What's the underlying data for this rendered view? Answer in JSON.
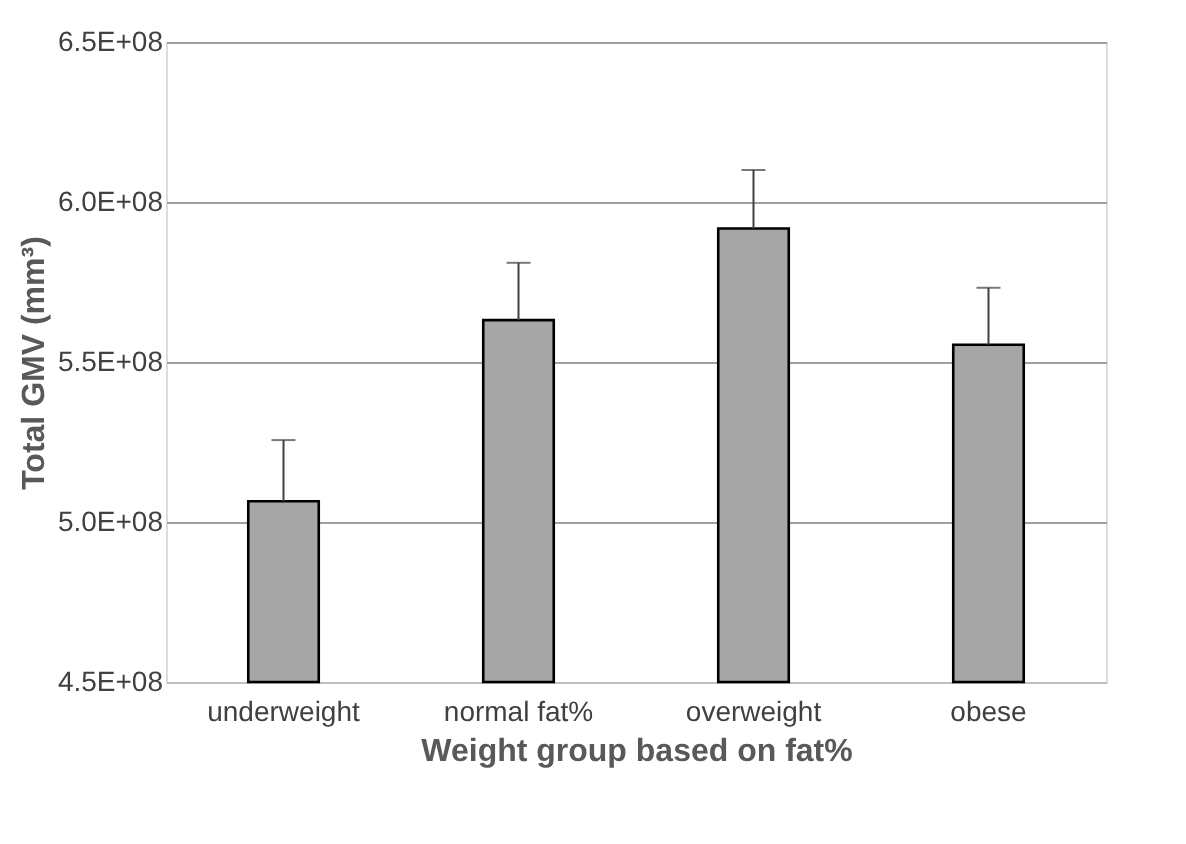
{
  "chart_data": {
    "type": "bar",
    "xlabel": "Weight group based on fat%",
    "ylabel": "Total GMV (mm³)",
    "categories": [
      "underweight",
      "normal fat%",
      "overweight",
      "obese"
    ],
    "series": [
      {
        "color": "#a6a6a6",
        "values": [
          506500000,
          563100000,
          591700000,
          555400000
        ],
        "errors": [
          [
            506500000,
            525600000
          ],
          [
            563100000,
            581000000
          ],
          [
            591700000,
            610000000
          ],
          [
            555400000,
            573200000
          ]
        ]
      }
    ],
    "ylim": [
      450000000,
      650000000
    ],
    "yticks": [
      {
        "value": 450000000,
        "label": "4.5E+08"
      },
      {
        "value": 500000000,
        "label": "5.0E+08"
      },
      {
        "value": 550000000,
        "label": "5.5E+08"
      },
      {
        "value": 600000000,
        "label": "6.0E+08"
      },
      {
        "value": 650000000,
        "label": "6.5E+08"
      }
    ],
    "grid": "y"
  }
}
